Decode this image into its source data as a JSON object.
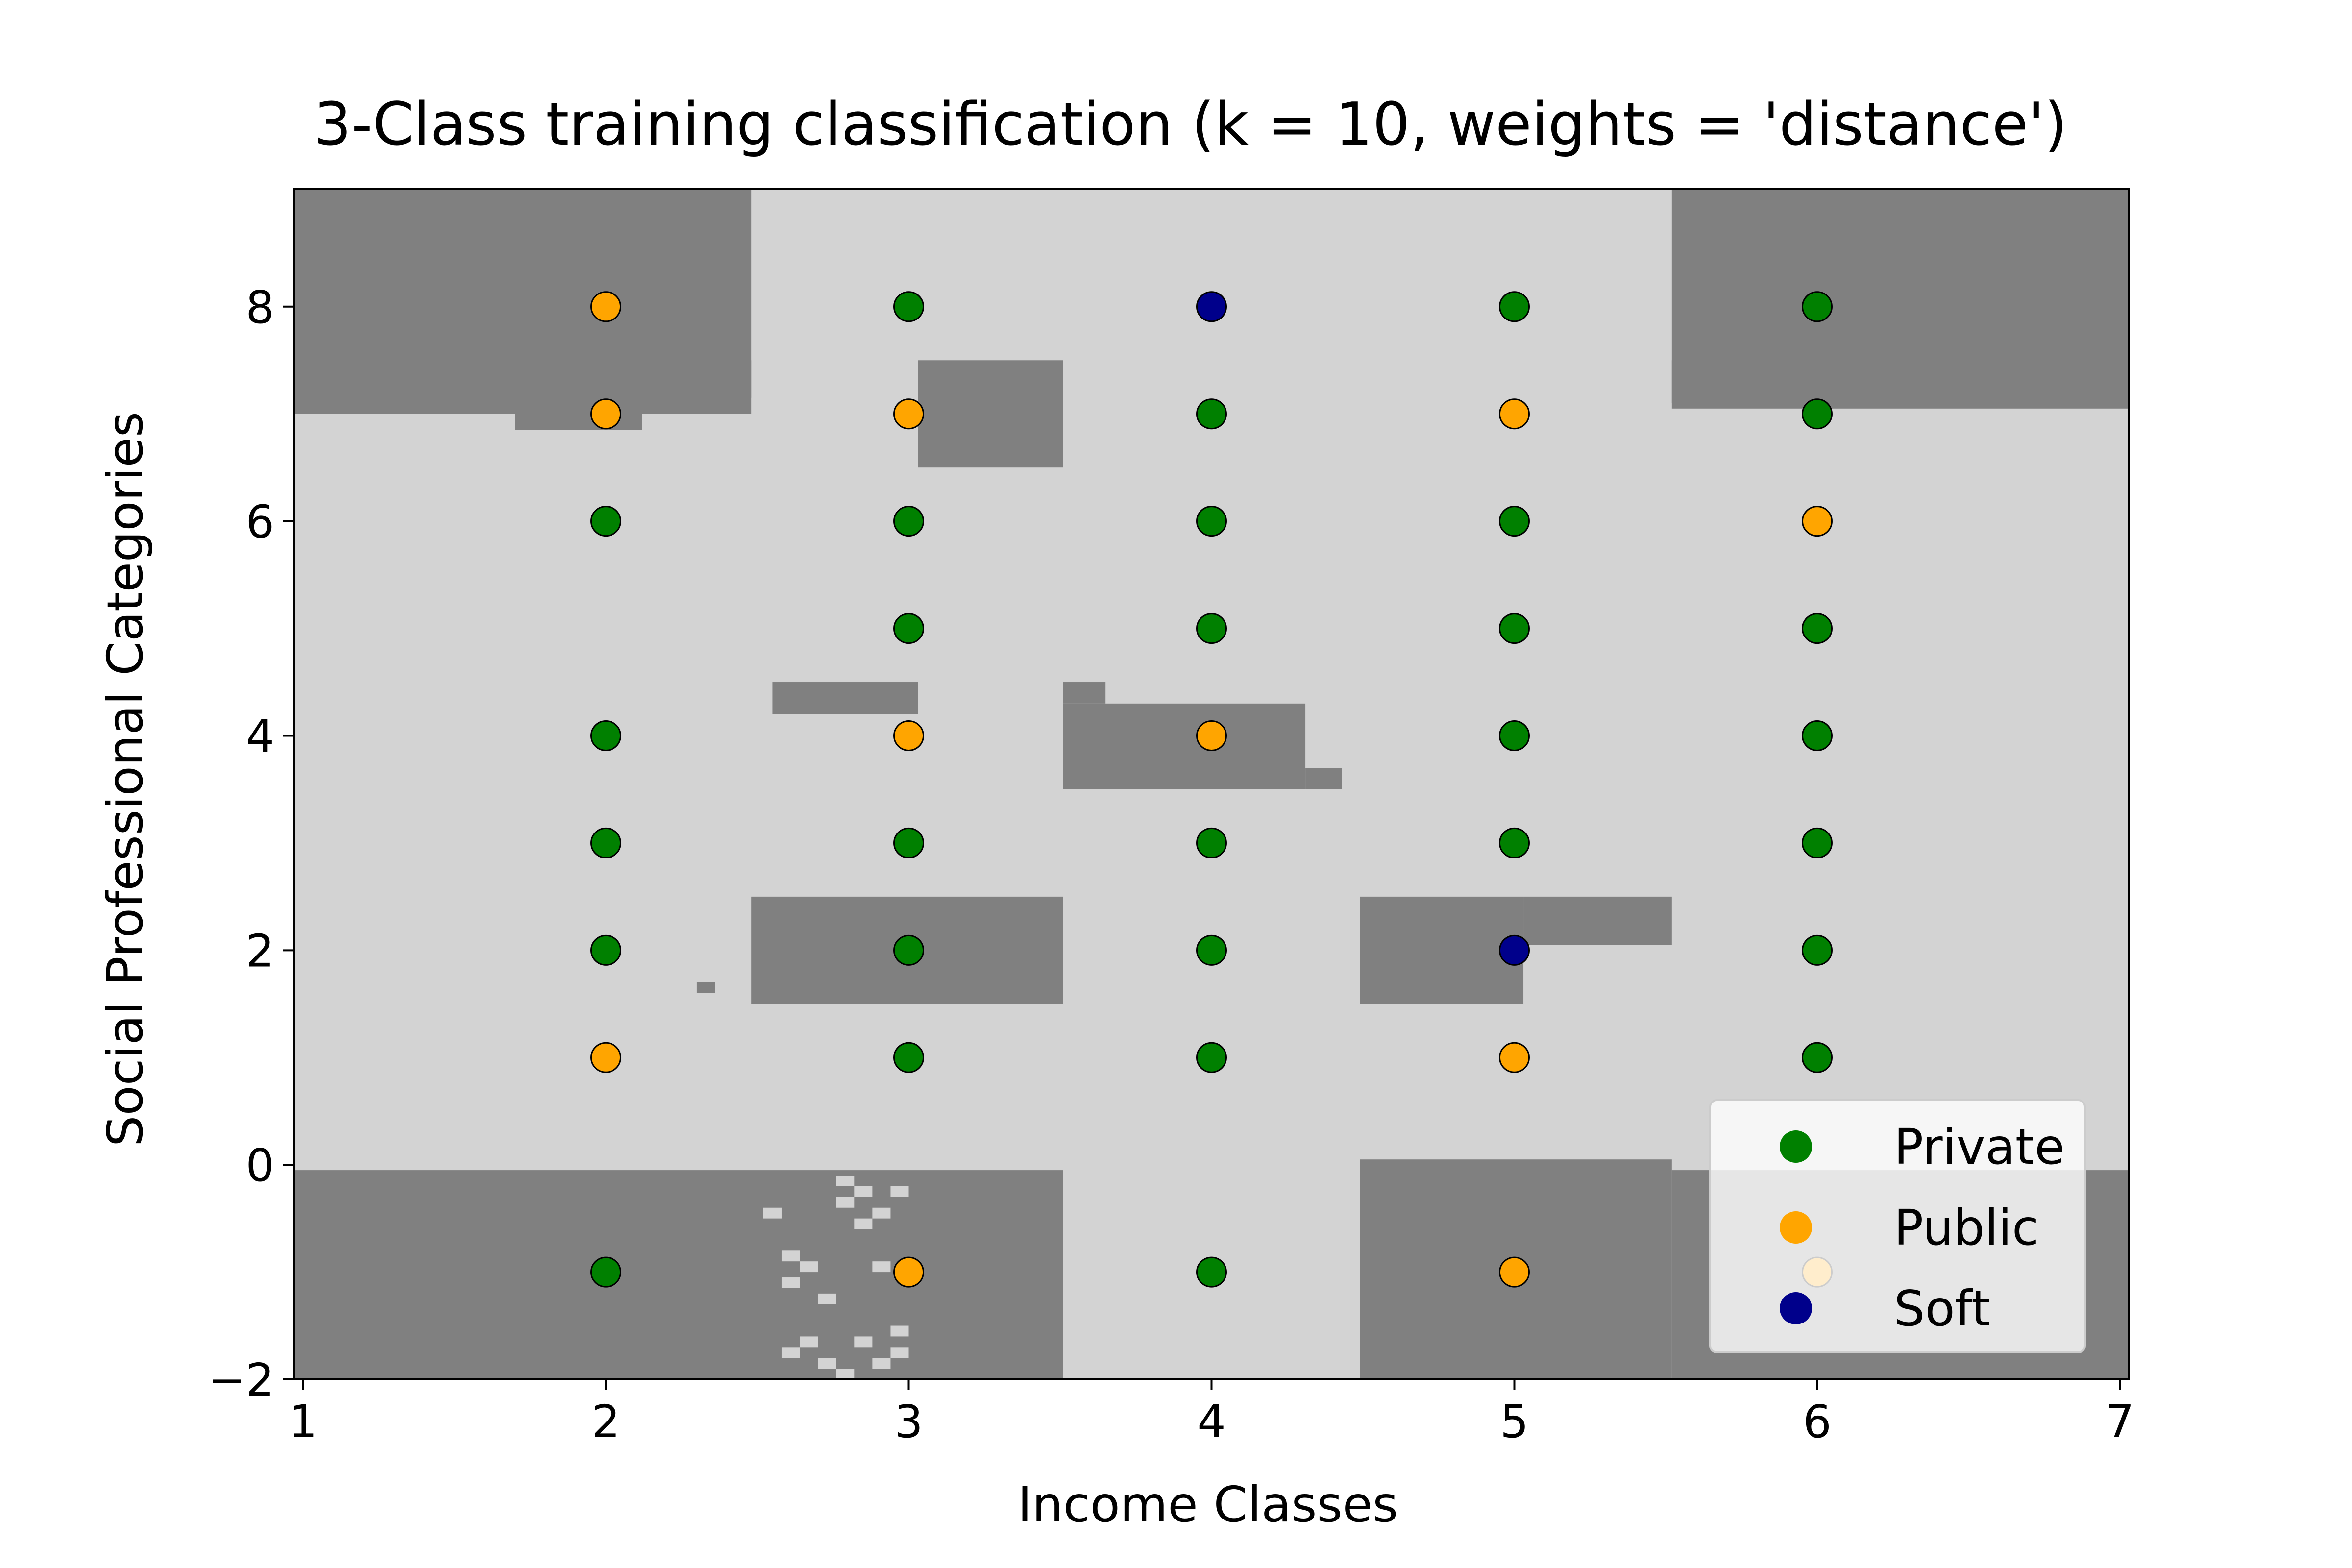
{
  "chart_data": {
    "type": "scatter",
    "title": "3-Class training classification (k = 10, weights = 'distance')",
    "xlabel": "Income Classes",
    "ylabel": "Social Professional Categories",
    "xlim": [
      0.97,
      7.03
    ],
    "ylim": [
      -2.0,
      9.1
    ],
    "x_ticks": [
      "1",
      "2",
      "3",
      "4",
      "5",
      "6",
      "7"
    ],
    "y_ticks": [
      "−2",
      "0",
      "2",
      "4",
      "6",
      "8"
    ],
    "grid": false,
    "legend_position": "lower-right",
    "decision_regions": {
      "colors": {
        "class_a": "#d3d3d3",
        "class_b": "#808080"
      },
      "dark_rectangles": [
        {
          "x0": 0.97,
          "x1": 2.48,
          "y0": 7.0,
          "y1": 9.1
        },
        {
          "x0": 1.7,
          "x1": 2.12,
          "y0": 6.85,
          "y1": 7.05
        },
        {
          "x0": 2.12,
          "x1": 2.48,
          "y0": 7.15,
          "y1": 7.5
        },
        {
          "x0": 5.52,
          "x1": 7.03,
          "y0": 7.05,
          "y1": 9.1
        },
        {
          "x0": 5.52,
          "x1": 5.9,
          "y0": 7.1,
          "y1": 7.5
        },
        {
          "x0": 3.03,
          "x1": 3.51,
          "y0": 6.5,
          "y1": 7.5
        },
        {
          "x0": 2.55,
          "x1": 3.03,
          "y0": 4.2,
          "y1": 4.5
        },
        {
          "x0": 3.51,
          "x1": 4.31,
          "y0": 3.5,
          "y1": 4.3
        },
        {
          "x0": 3.51,
          "x1": 3.65,
          "y0": 4.3,
          "y1": 4.5
        },
        {
          "x0": 4.31,
          "x1": 4.43,
          "y0": 3.5,
          "y1": 3.7
        },
        {
          "x0": 2.48,
          "x1": 3.51,
          "y0": 1.5,
          "y1": 2.5
        },
        {
          "x0": 2.3,
          "x1": 2.36,
          "y0": 1.6,
          "y1": 1.7
        },
        {
          "x0": 4.49,
          "x1": 5.03,
          "y0": 1.5,
          "y1": 2.5
        },
        {
          "x0": 5.03,
          "x1": 5.52,
          "y0": 2.05,
          "y1": 2.5
        },
        {
          "x0": 0.97,
          "x1": 3.51,
          "y0": -2.0,
          "y1": -0.05
        },
        {
          "x0": 4.49,
          "x1": 5.52,
          "y0": -2.0,
          "y1": 0.05
        },
        {
          "x0": 5.52,
          "x1": 7.03,
          "y0": -2.0,
          "y1": -0.05
        }
      ],
      "light_cells": [
        {
          "x": 2.52,
          "y": -0.45
        },
        {
          "x": 2.58,
          "y": -0.85
        },
        {
          "x": 2.58,
          "y": -1.1
        },
        {
          "x": 2.64,
          "y": -0.95
        },
        {
          "x": 2.7,
          "y": -1.25
        },
        {
          "x": 2.76,
          "y": -0.15
        },
        {
          "x": 2.76,
          "y": -0.35
        },
        {
          "x": 2.82,
          "y": -0.25
        },
        {
          "x": 2.82,
          "y": -0.55
        },
        {
          "x": 2.88,
          "y": -0.45
        },
        {
          "x": 2.94,
          "y": -0.25
        },
        {
          "x": 2.88,
          "y": -0.95
        },
        {
          "x": 2.64,
          "y": -1.65
        },
        {
          "x": 2.58,
          "y": -1.75
        },
        {
          "x": 2.7,
          "y": -1.85
        },
        {
          "x": 2.82,
          "y": -1.65
        },
        {
          "x": 2.94,
          "y": -1.55
        },
        {
          "x": 2.94,
          "y": -1.75
        },
        {
          "x": 2.76,
          "y": -1.95
        },
        {
          "x": 2.88,
          "y": -1.85
        }
      ]
    },
    "series": [
      {
        "name": "Private",
        "color": "#008000",
        "points": [
          [
            2,
            6
          ],
          [
            2,
            4
          ],
          [
            2,
            3
          ],
          [
            2,
            2
          ],
          [
            2,
            -1
          ],
          [
            3,
            8
          ],
          [
            3,
            6
          ],
          [
            3,
            5
          ],
          [
            3,
            3
          ],
          [
            3,
            2
          ],
          [
            3,
            1
          ],
          [
            4,
            7
          ],
          [
            4,
            6
          ],
          [
            4,
            5
          ],
          [
            4,
            3
          ],
          [
            4,
            2
          ],
          [
            4,
            1
          ],
          [
            4,
            -1
          ],
          [
            5,
            8
          ],
          [
            5,
            6
          ],
          [
            5,
            5
          ],
          [
            5,
            4
          ],
          [
            5,
            3
          ],
          [
            6,
            8
          ],
          [
            6,
            7
          ],
          [
            6,
            5
          ],
          [
            6,
            4
          ],
          [
            6,
            3
          ],
          [
            6,
            2
          ],
          [
            6,
            1
          ]
        ]
      },
      {
        "name": "Public",
        "color": "#ffa500",
        "points": [
          [
            2,
            8
          ],
          [
            2,
            7
          ],
          [
            2,
            1
          ],
          [
            3,
            7
          ],
          [
            3,
            4
          ],
          [
            3,
            -1
          ],
          [
            4,
            4
          ],
          [
            5,
            7
          ],
          [
            5,
            1
          ],
          [
            5,
            -1
          ],
          [
            6,
            6
          ],
          [
            6,
            -1
          ]
        ]
      },
      {
        "name": "Soft",
        "color": "#00008b",
        "points": [
          [
            4,
            8
          ],
          [
            5,
            2
          ]
        ]
      }
    ]
  }
}
